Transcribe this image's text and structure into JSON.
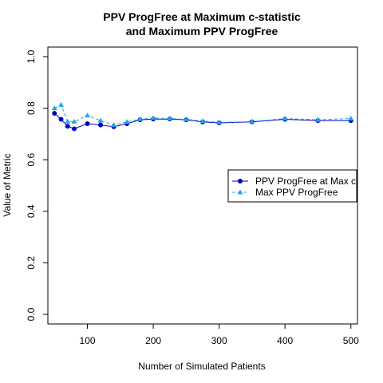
{
  "chart_data": {
    "type": "line",
    "title_line1": "PPV ProgFree at Maximum c-statistic",
    "title_line2": "and Maximum PPV ProgFree",
    "xlabel": "Number of Simulated Patients",
    "ylabel": "Value of Metric",
    "xlim": [
      40,
      510
    ],
    "ylim": [
      0,
      1
    ],
    "xticks": [
      100,
      200,
      300,
      400,
      500
    ],
    "yticks": [
      0.0,
      0.2,
      0.4,
      0.6,
      0.8,
      1.0
    ],
    "ytick_labels": [
      "0.0",
      "0.2",
      "0.4",
      "0.6",
      "0.8",
      "1.0"
    ],
    "legend_position": "right",
    "series": [
      {
        "name": "PPV ProgFree at Max c",
        "color": "#0000CD",
        "marker": "circle",
        "line": "solid",
        "x": [
          50,
          60,
          70,
          80,
          100,
          120,
          140,
          160,
          180,
          200,
          225,
          250,
          275,
          300,
          350,
          400,
          450,
          500
        ],
        "y": [
          0.78,
          0.757,
          0.73,
          0.72,
          0.74,
          0.735,
          0.728,
          0.74,
          0.755,
          0.758,
          0.758,
          0.755,
          0.747,
          0.743,
          0.747,
          0.757,
          0.752,
          0.752
        ]
      },
      {
        "name": "Max PPV ProgFree",
        "color": "#1EA8E0",
        "marker": "triangle",
        "line": "dashed",
        "x": [
          50,
          60,
          70,
          80,
          100,
          120,
          140,
          160,
          180,
          200,
          225,
          250,
          275,
          300,
          350,
          400,
          450,
          500
        ],
        "y": [
          0.8,
          0.813,
          0.748,
          0.748,
          0.772,
          0.752,
          0.735,
          0.747,
          0.758,
          0.762,
          0.76,
          0.757,
          0.75,
          0.745,
          0.748,
          0.76,
          0.755,
          0.76
        ]
      }
    ]
  }
}
